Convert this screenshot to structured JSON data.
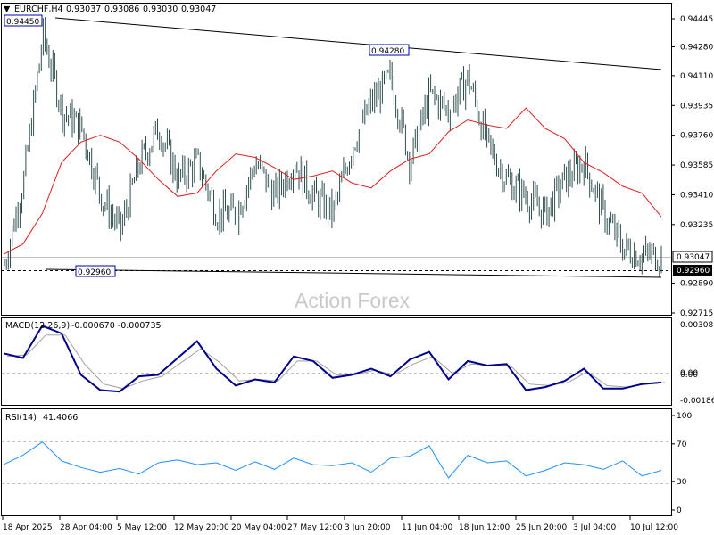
{
  "main_header": {
    "symbol": "EURCHF,H4",
    "open": "0.93037",
    "high": "0.93086",
    "low": "0.93030",
    "close": "0.93047"
  },
  "watermark": "Action Forex",
  "price_labels": {
    "high_point": "0.94450",
    "mid_high": "0.94280",
    "support": "0.92960",
    "current": "0.93047",
    "support_axis": "0.92960"
  },
  "macd": {
    "label": "MACD(12,26,9)",
    "values": "-0.000670 -0.000735"
  },
  "rsi": {
    "label": "RSI(14)",
    "value": "41.4066"
  },
  "colors": {
    "candles": "#2f4f4f",
    "ma": "#e02020",
    "macd_main": "#00008b",
    "macd_signal": "#a0a0a0",
    "rsi": "#1e90ff",
    "label_box_border": "#0000aa"
  },
  "chart_data": [
    {
      "type": "candlestick",
      "title": "EURCHF,H4",
      "y_ticks": [
        "0.94445",
        "0.94280",
        "0.94110",
        "0.93935",
        "0.93760",
        "0.93585",
        "0.93410",
        "0.93235",
        "0.93047",
        "0.92960",
        "0.92890",
        "0.92715"
      ],
      "ylim": [
        0.92715,
        0.94445
      ],
      "x_ticks": [
        "18 Apr 2025",
        "28 Apr 04:00",
        "5 May 12:00",
        "12 May 20:00",
        "20 May 04:00",
        "27 May 12:00",
        "3 Jun 20:00",
        "11 Jun 04:00",
        "18 Jun 12:00",
        "25 Jun 20:00",
        "3 Jul 04:00",
        "10 Jul 12:00"
      ],
      "series": [
        {
          "type": "line",
          "values": [
            0.9306,
            0.9312,
            0.933,
            0.936,
            0.9372,
            0.9376,
            0.9372,
            0.9362,
            0.935,
            0.934,
            0.9342,
            0.9355,
            0.9365,
            0.9363,
            0.9357,
            0.935,
            0.9352,
            0.9355,
            0.9348,
            0.9345,
            0.9355,
            0.9362,
            0.9365,
            0.9378,
            0.9385,
            0.9382,
            0.938,
            0.9392,
            0.938,
            0.9374,
            0.936,
            0.9354,
            0.9346,
            0.9342,
            0.9328
          ]
        }
      ],
      "close_estimates": [
        0.93,
        0.935,
        0.9435,
        0.939,
        0.938,
        0.934,
        0.932,
        0.936,
        0.938,
        0.935,
        0.936,
        0.933,
        0.933,
        0.936,
        0.934,
        0.936,
        0.934,
        0.933,
        0.937,
        0.9395,
        0.941,
        0.936,
        0.94,
        0.939,
        0.941,
        0.937,
        0.935,
        0.934,
        0.933,
        0.935,
        0.936,
        0.933,
        0.931,
        0.9305,
        0.9305
      ],
      "annotations": [
        {
          "label": "0.94450",
          "x": "18 Apr 2025",
          "y": 0.9445
        },
        {
          "label": "0.94280",
          "x": "11 Jun 04:00",
          "y": 0.9428
        },
        {
          "label": "0.92960",
          "x": "5 May 12:00",
          "y": 0.9296
        }
      ]
    },
    {
      "type": "line",
      "title": "MACD(12,26,9) -0.000670 -0.000735",
      "y_ticks": [
        "0.003081",
        "0.00",
        "0.00",
        "-0.001868"
      ],
      "ylim": [
        -0.001868,
        0.003081
      ],
      "series": [
        {
          "name": "MACD",
          "values": [
            0.0012,
            0.0009,
            0.003,
            0.0025,
            -0.0002,
            -0.0012,
            -0.0013,
            -0.0003,
            -0.0002,
            0.0009,
            0.002,
            0.0002,
            -0.0009,
            -0.0005,
            -0.0007,
            0.001,
            0.0007,
            -0.0004,
            -0.0002,
            0.0002,
            -0.0003,
            0.0008,
            0.0013,
            -0.0005,
            0.0007,
            0.0004,
            0.0005,
            -0.0012,
            -0.001,
            -0.0006,
            0.0002,
            -0.0011,
            -0.0011,
            -0.0008,
            -0.0007
          ]
        },
        {
          "name": "Signal",
          "values": [
            0.001,
            0.0011,
            0.0024,
            0.0024,
            0.0005,
            -0.0008,
            -0.0011,
            -0.0006,
            -0.0003,
            0.0006,
            0.0015,
            0.0006,
            -0.0006,
            -0.0005,
            -0.0006,
            0.0007,
            0.0007,
            -0.0002,
            -0.0002,
            0.0001,
            -0.0002,
            0.0005,
            0.001,
            -0.0001,
            0.0005,
            0.0004,
            0.0004,
            -0.0008,
            -0.0009,
            -0.0007,
            0.0,
            -0.0009,
            -0.001,
            -0.0008,
            -0.0007
          ]
        }
      ]
    },
    {
      "type": "line",
      "title": "RSI(14) 41.4066",
      "y_ticks": [
        "100",
        "70",
        "30",
        "0"
      ],
      "ylim": [
        0,
        100
      ],
      "series": [
        {
          "name": "RSI",
          "values": [
            48,
            58,
            72,
            52,
            45,
            40,
            44,
            38,
            50,
            53,
            48,
            50,
            42,
            51,
            43,
            55,
            48,
            47,
            50,
            40,
            55,
            57,
            68,
            34,
            58,
            50,
            52,
            36,
            42,
            50,
            48,
            43,
            52,
            36,
            42
          ]
        }
      ]
    }
  ]
}
